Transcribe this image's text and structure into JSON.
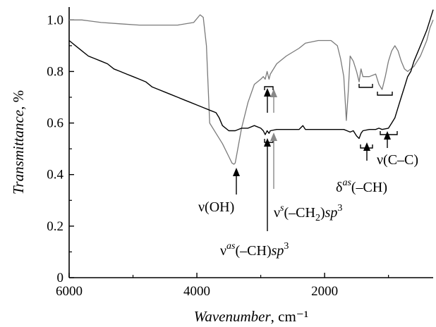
{
  "chart_data": {
    "type": "line",
    "title": "",
    "xlabel": "Wavenumber",
    "xlabel_unit": "cm⁻¹",
    "ylabel": "Transmittance",
    "ylabel_unit": "%",
    "xlim": [
      6000,
      300
    ],
    "ylim": [
      0,
      1.05
    ],
    "x_ticks": [
      "6000",
      "4000",
      "2000"
    ],
    "x_tick_values": [
      6000,
      4000,
      2000
    ],
    "y_ticks": [
      "0",
      "0.2",
      "0.4",
      "0.6",
      "0.8",
      "1.0"
    ],
    "y_tick_values": [
      0,
      0.2,
      0.4,
      0.6,
      0.8,
      1.0
    ],
    "grid": false,
    "series": [
      {
        "color": "#7a7a7a",
        "x": [
          6000,
          5800,
          5500,
          5200,
          4900,
          4600,
          4300,
          4050,
          3950,
          3900,
          3850,
          3800,
          3700,
          3600,
          3500,
          3450,
          3420,
          3400,
          3300,
          3200,
          3100,
          3000,
          2960,
          2930,
          2900,
          2870,
          2850,
          2750,
          2600,
          2400,
          2300,
          2100,
          1900,
          1800,
          1750,
          1700,
          1660,
          1630,
          1600,
          1550,
          1500,
          1460,
          1430,
          1400,
          1300,
          1200,
          1150,
          1100,
          1050,
          1000,
          950,
          900,
          850,
          800,
          750,
          700,
          600,
          500,
          400,
          350,
          300
        ],
        "y": [
          1.0,
          1.0,
          0.99,
          0.985,
          0.98,
          0.98,
          0.98,
          0.99,
          1.02,
          1.01,
          0.9,
          0.6,
          0.56,
          0.52,
          0.47,
          0.445,
          0.44,
          0.445,
          0.58,
          0.68,
          0.75,
          0.77,
          0.78,
          0.77,
          0.8,
          0.77,
          0.79,
          0.83,
          0.86,
          0.89,
          0.91,
          0.92,
          0.92,
          0.9,
          0.85,
          0.78,
          0.61,
          0.72,
          0.86,
          0.84,
          0.8,
          0.76,
          0.81,
          0.78,
          0.78,
          0.79,
          0.75,
          0.73,
          0.78,
          0.84,
          0.88,
          0.9,
          0.88,
          0.84,
          0.81,
          0.8,
          0.82,
          0.86,
          0.92,
          0.97,
          1.0
        ]
      },
      {
        "color": "#000000",
        "x": [
          6000,
          5900,
          5800,
          5700,
          5600,
          5500,
          5400,
          5300,
          5200,
          5100,
          5000,
          4900,
          4800,
          4700,
          4600,
          4500,
          4400,
          4300,
          4200,
          4100,
          4000,
          3900,
          3800,
          3700,
          3650,
          3600,
          3500,
          3400,
          3300,
          3200,
          3100,
          3000,
          2960,
          2930,
          2900,
          2870,
          2850,
          2750,
          2600,
          2400,
          2340,
          2300,
          2100,
          1800,
          1700,
          1650,
          1600,
          1550,
          1500,
          1460,
          1430,
          1400,
          1300,
          1200,
          1150,
          1100,
          1000,
          950,
          900,
          850,
          800,
          750,
          700,
          650,
          600,
          500,
          400,
          350,
          300
        ],
        "y": [
          0.92,
          0.9,
          0.88,
          0.86,
          0.85,
          0.84,
          0.83,
          0.81,
          0.8,
          0.79,
          0.78,
          0.77,
          0.76,
          0.74,
          0.73,
          0.72,
          0.71,
          0.7,
          0.69,
          0.68,
          0.67,
          0.66,
          0.65,
          0.64,
          0.62,
          0.59,
          0.57,
          0.57,
          0.58,
          0.58,
          0.59,
          0.58,
          0.57,
          0.555,
          0.57,
          0.56,
          0.57,
          0.575,
          0.575,
          0.575,
          0.59,
          0.575,
          0.575,
          0.575,
          0.575,
          0.57,
          0.565,
          0.57,
          0.55,
          0.54,
          0.56,
          0.57,
          0.575,
          0.575,
          0.58,
          0.575,
          0.58,
          0.6,
          0.62,
          0.66,
          0.7,
          0.74,
          0.78,
          0.8,
          0.84,
          0.9,
          0.96,
          1.0,
          1.04
        ]
      }
    ],
    "annotations": [
      {
        "id": "oh",
        "label": "ν(OH)",
        "x": 3420
      },
      {
        "id": "ch_as",
        "label": "νas(–CH)sp3",
        "x": 2930
      },
      {
        "id": "ch2_s",
        "label": "νs(–CH2)sp3",
        "x": 2850
      },
      {
        "id": "ch_def",
        "label": "δas(–CH)",
        "x": 1460
      },
      {
        "id": "cc",
        "label": "ν(C–C)",
        "x": 1100
      }
    ]
  }
}
